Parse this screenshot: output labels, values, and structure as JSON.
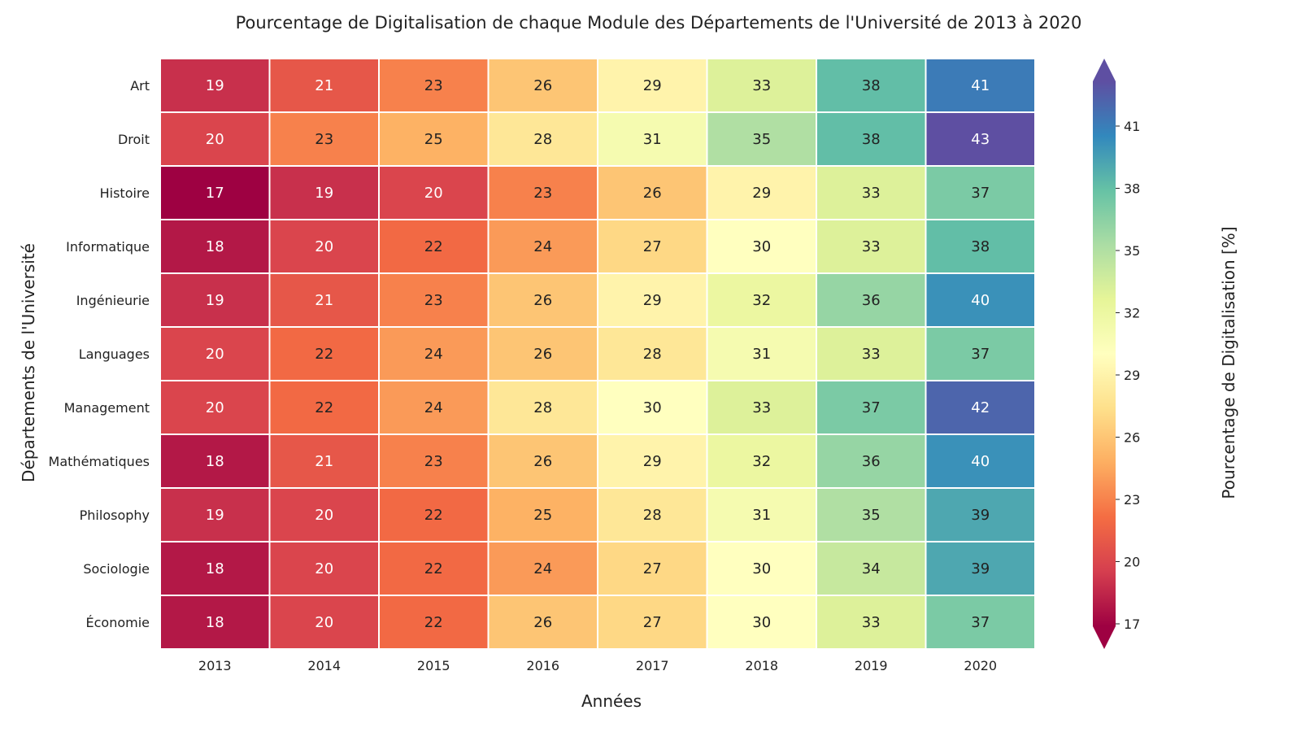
{
  "chart_data": {
    "type": "heatmap",
    "title": "Pourcentage de Digitalisation de chaque Module des Départements de l'Université de 2013 à 2020",
    "xlabel": "Années",
    "ylabel": "Départements de l'Université",
    "colorbar_label": "Pourcentage de Digitalisation [%]",
    "colormap": "Spectral",
    "color_range": [
      17,
      43
    ],
    "colorbar_ticks": [
      "17",
      "20",
      "23",
      "26",
      "29",
      "32",
      "35",
      "38",
      "41"
    ],
    "x": [
      "2013",
      "2014",
      "2015",
      "2016",
      "2017",
      "2018",
      "2019",
      "2020"
    ],
    "y": [
      "Art",
      "Droit",
      "Histoire",
      "Informatique",
      "Ingénieurie",
      "Languages",
      "Management",
      "Mathématiques",
      "Philosophy",
      "Sociologie",
      "Économie"
    ],
    "values": [
      [
        19,
        21,
        23,
        26,
        29,
        33,
        38,
        41
      ],
      [
        20,
        23,
        25,
        28,
        31,
        35,
        38,
        43
      ],
      [
        17,
        19,
        20,
        23,
        26,
        29,
        33,
        37
      ],
      [
        18,
        20,
        22,
        24,
        27,
        30,
        33,
        38
      ],
      [
        19,
        21,
        23,
        26,
        29,
        32,
        36,
        40
      ],
      [
        20,
        22,
        24,
        26,
        28,
        31,
        33,
        37
      ],
      [
        20,
        22,
        24,
        28,
        30,
        33,
        37,
        42
      ],
      [
        18,
        21,
        23,
        26,
        29,
        32,
        36,
        40
      ],
      [
        19,
        20,
        22,
        25,
        28,
        31,
        35,
        39
      ],
      [
        18,
        20,
        22,
        24,
        27,
        30,
        34,
        39
      ],
      [
        18,
        20,
        22,
        26,
        27,
        30,
        33,
        37
      ]
    ],
    "annotations": true
  }
}
